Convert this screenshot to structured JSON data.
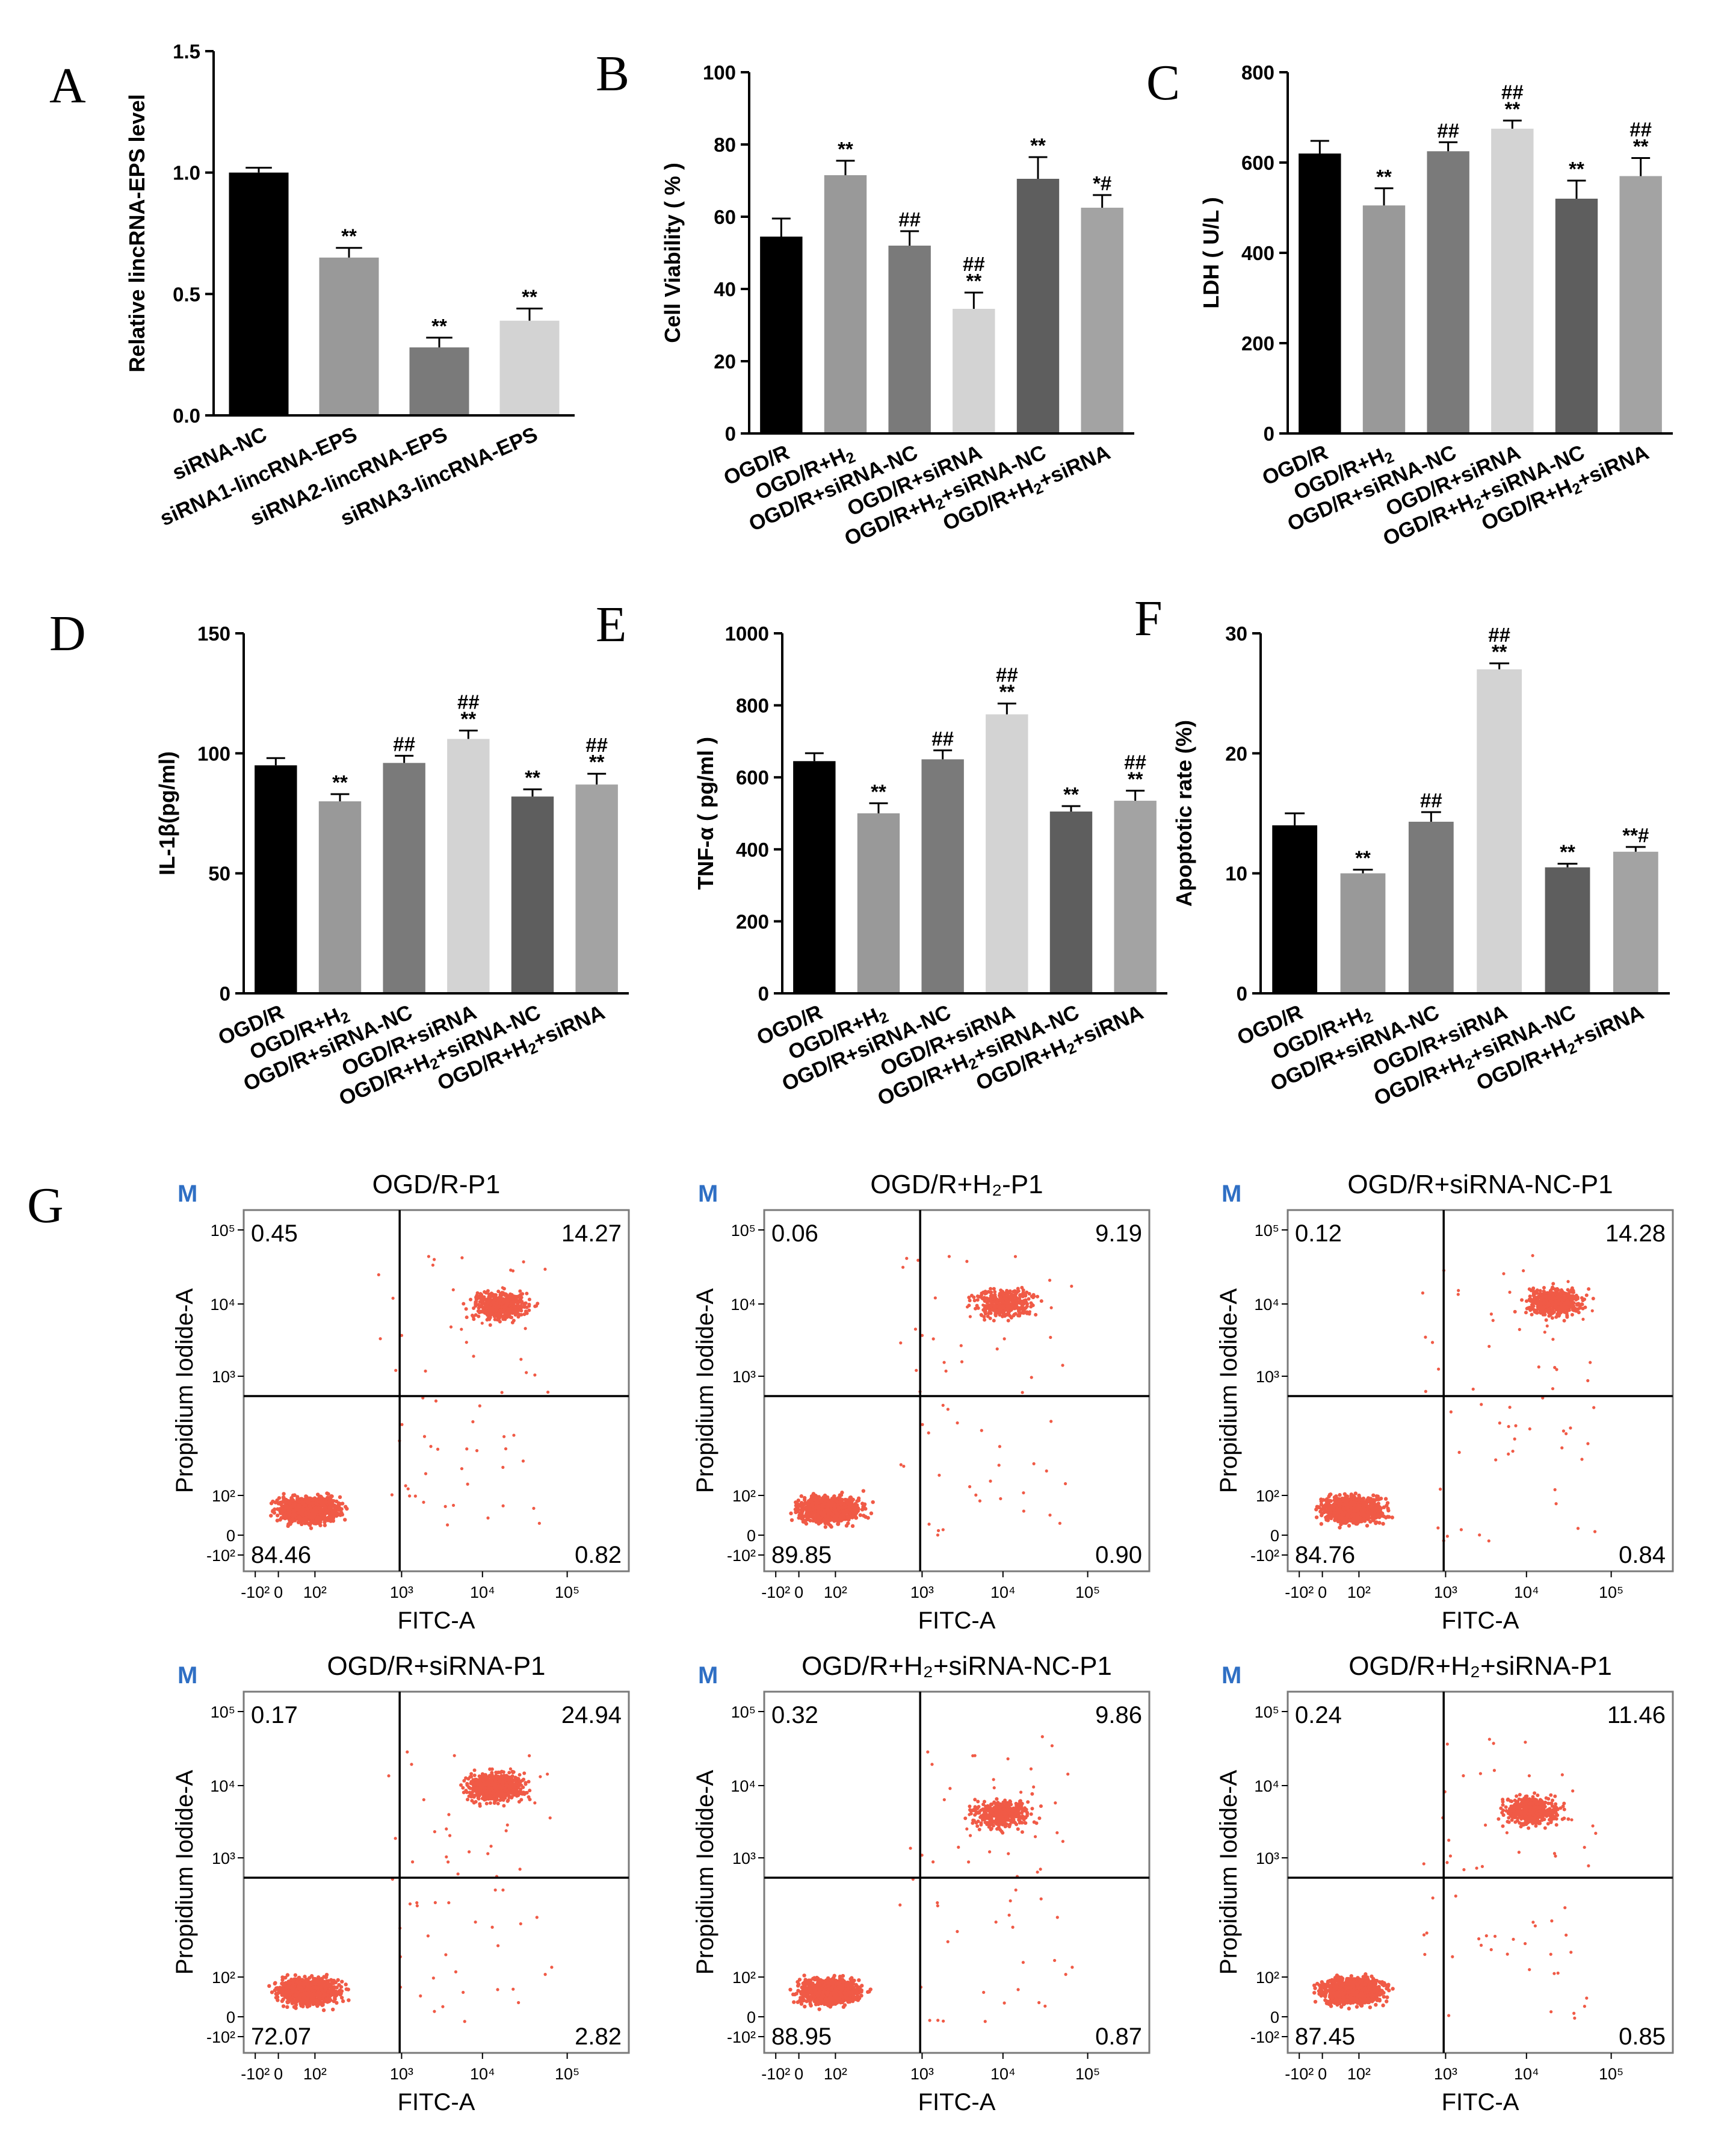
{
  "colors": {
    "bars": [
      "#000000",
      "#999999",
      "#7a7a7a",
      "#d3d3d3",
      "#5e5e5e",
      "#a3a3a3"
    ],
    "dots": "#f05a46",
    "flow_m": "#2f6fc4"
  },
  "chart_data": [
    {
      "panel": "A",
      "type": "bar",
      "ylabel": "Relative lincRNA-EPS level",
      "ylim": [
        0,
        1.5
      ],
      "yticks": [
        "0.0",
        "0.5",
        "1.0",
        "1.5"
      ],
      "categories": [
        "siRNA-NC",
        "siRNA1-lincRNA-EPS",
        "siRNA2-lincRNA-EPS",
        "siRNA3-lincRNA-EPS"
      ],
      "values": [
        1.0,
        0.65,
        0.28,
        0.39
      ],
      "errors": [
        0.02,
        0.04,
        0.04,
        0.05
      ],
      "significance": [
        [],
        [
          "**"
        ],
        [
          "**"
        ],
        [
          "**"
        ]
      ]
    },
    {
      "panel": "B",
      "type": "bar",
      "ylabel": "Cell Viability ( % )",
      "ylim": [
        0,
        100
      ],
      "yticks": [
        "0",
        "20",
        "40",
        "60",
        "80",
        "100"
      ],
      "categories": [
        "OGD/R",
        "OGD/R+H2",
        "OGD/R+siRNA-NC",
        "OGD/R+siRNA",
        "OGD/R+H2+siRNA-NC",
        "OGD/R+H2+siRNA"
      ],
      "values": [
        54.5,
        71.5,
        52,
        34.5,
        70.5,
        62.5
      ],
      "errors": [
        5,
        4,
        4,
        4.5,
        6,
        3.5
      ],
      "significance": [
        [],
        [
          "**"
        ],
        [
          "##"
        ],
        [
          "##",
          "**"
        ],
        [
          "**"
        ],
        [
          "*#"
        ]
      ]
    },
    {
      "panel": "C",
      "type": "bar",
      "ylabel": "LDH ( U/L )",
      "ylim": [
        0,
        800
      ],
      "yticks": [
        "0",
        "200",
        "400",
        "600",
        "800"
      ],
      "categories": [
        "OGD/R",
        "OGD/R+H2",
        "OGD/R+siRNA-NC",
        "OGD/R+siRNA",
        "OGD/R+H2+siRNA-NC",
        "OGD/R+H2+siRNA"
      ],
      "values": [
        620,
        505,
        625,
        675,
        520,
        570
      ],
      "errors": [
        28,
        38,
        20,
        18,
        40,
        40
      ],
      "significance": [
        [],
        [
          "**"
        ],
        [
          "##"
        ],
        [
          "##",
          "**"
        ],
        [
          "**"
        ],
        [
          "##",
          "**"
        ]
      ]
    },
    {
      "panel": "D",
      "type": "bar",
      "ylabel": "IL-1β(pg/ml)",
      "ylim": [
        0,
        150
      ],
      "yticks": [
        "0",
        "50",
        "100",
        "150"
      ],
      "categories": [
        "OGD/R",
        "OGD/R+H2",
        "OGD/R+siRNA-NC",
        "OGD/R+siRNA",
        "OGD/R+H2+siRNA-NC",
        "OGD/R+H2+siRNA"
      ],
      "values": [
        95,
        80,
        96,
        106,
        82,
        87
      ],
      "errors": [
        3,
        3,
        3,
        3.5,
        3,
        4.5
      ],
      "significance": [
        [],
        [
          "**"
        ],
        [
          "##"
        ],
        [
          "##",
          "**"
        ],
        [
          "**"
        ],
        [
          "##",
          "**"
        ]
      ]
    },
    {
      "panel": "E",
      "type": "bar",
      "ylabel": "TNF-α ( pg/ml )",
      "ylim": [
        0,
        1000
      ],
      "yticks": [
        "0",
        "200",
        "400",
        "600",
        "800",
        "1000"
      ],
      "categories": [
        "OGD/R",
        "OGD/R+H2",
        "OGD/R+siRNA-NC",
        "OGD/R+siRNA",
        "OGD/R+H2+siRNA-NC",
        "OGD/R+H2+siRNA"
      ],
      "values": [
        645,
        500,
        650,
        775,
        505,
        535
      ],
      "errors": [
        22,
        28,
        25,
        30,
        15,
        28
      ],
      "significance": [
        [],
        [
          "**"
        ],
        [
          "##"
        ],
        [
          "##",
          "**"
        ],
        [
          "**"
        ],
        [
          "##",
          "**"
        ]
      ]
    },
    {
      "panel": "F",
      "type": "bar",
      "ylabel": "Apoptotic rate (%)",
      "ylim": [
        0,
        30
      ],
      "yticks": [
        "0",
        "10",
        "20",
        "30"
      ],
      "categories": [
        "OGD/R",
        "OGD/R+H2",
        "OGD/R+siRNA-NC",
        "OGD/R+siRNA",
        "OGD/R+H2+siRNA-NC",
        "OGD/R+H2+siRNA"
      ],
      "values": [
        14,
        10,
        14.3,
        27,
        10.5,
        11.8
      ],
      "errors": [
        1,
        0.3,
        0.8,
        0.5,
        0.3,
        0.4
      ],
      "significance": [
        [],
        [
          "**"
        ],
        [
          "##"
        ],
        [
          "##",
          "**"
        ],
        [
          "**"
        ],
        [
          "**#"
        ]
      ]
    },
    {
      "panel": "G",
      "type": "scatter",
      "xlabel": "FITC-A",
      "ylabel": "Propidium Iodide-A",
      "xticks": [
        "-10²",
        "0",
        "10²",
        "10³",
        "10⁴",
        "10⁵"
      ],
      "yticks": [
        "-10²",
        "0",
        "10²",
        "10³",
        "10⁴",
        "10⁵"
      ],
      "plots": [
        {
          "marker": "M",
          "title": "OGD/R-P1",
          "quadrants": {
            "ul": "0.45",
            "ur": "14.27",
            "ll": "84.46",
            "lr": "0.82"
          }
        },
        {
          "marker": "M",
          "title": "OGD/R+H₂-P1",
          "quadrants": {
            "ul": "0.06",
            "ur": "9.19",
            "ll": "89.85",
            "lr": "0.90"
          }
        },
        {
          "marker": "M",
          "title": "OGD/R+siRNA-NC-P1",
          "quadrants": {
            "ul": "0.12",
            "ur": "14.28",
            "ll": "84.76",
            "lr": "0.84"
          }
        },
        {
          "marker": "M",
          "title": "OGD/R+siRNA-P1",
          "quadrants": {
            "ul": "0.17",
            "ur": "24.94",
            "ll": "72.07",
            "lr": "2.82"
          }
        },
        {
          "marker": "M",
          "title": "OGD/R+H₂+siRNA-NC-P1",
          "quadrants": {
            "ul": "0.32",
            "ur": "9.86",
            "ll": "88.95",
            "lr": "0.87"
          }
        },
        {
          "marker": "M",
          "title": "OGD/R+H₂+siRNA-P1",
          "quadrants": {
            "ul": "0.24",
            "ur": "11.46",
            "ll": "87.45",
            "lr": "0.85"
          }
        }
      ]
    }
  ]
}
